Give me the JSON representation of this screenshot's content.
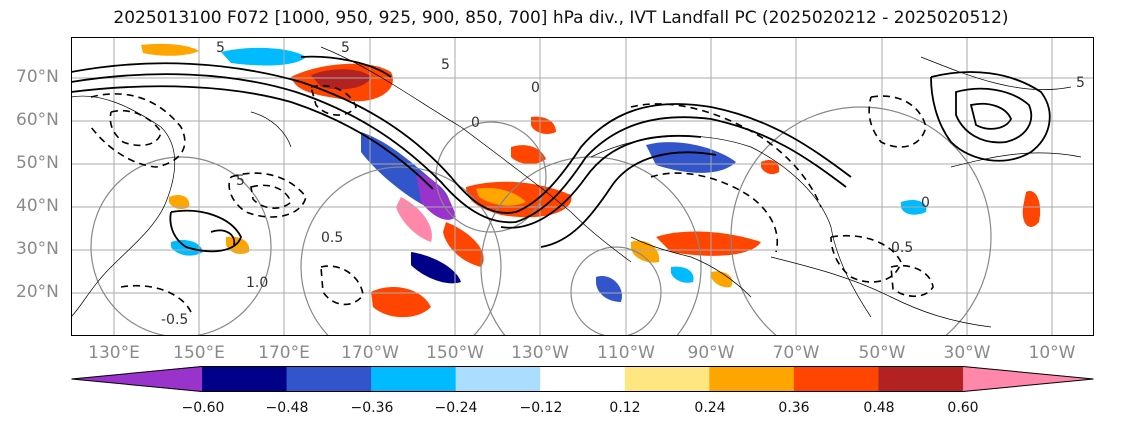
{
  "title": "2025013100 F072 [1000, 950, 925, 900, 850, 700] hPa div., IVT Landfall PC (2025020212 - 2025020512)",
  "lat_labels": [
    "70°N",
    "60°N",
    "50°N",
    "40°N",
    "30°N",
    "20°N"
  ],
  "lon_labels": [
    "130°E",
    "150°E",
    "170°E",
    "170°W",
    "150°W",
    "130°W",
    "110°W",
    "90°W",
    "70°W",
    "50°W",
    "30°W",
    "10°W"
  ],
  "colorbar": {
    "ticks": [
      "−0.60",
      "−0.48",
      "−0.36",
      "−0.24",
      "−0.12",
      "0.12",
      "0.24",
      "0.36",
      "0.48",
      "0.60"
    ],
    "colors": [
      "#9933cc",
      "#000088",
      "#3355cc",
      "#00bbff",
      "#aaddff",
      "#ffffff",
      "#ffe680",
      "#ffa500",
      "#ff4500",
      "#b22222",
      "#ff88aa"
    ]
  },
  "contour_labels": [
    "5",
    "5",
    "5",
    "0.5",
    "0.5",
    "1.0",
    "-0.5",
    "0",
    "0",
    "0",
    "5",
    "5"
  ],
  "colors": {
    "grid": "#aaaaaa",
    "contour": "#000000",
    "range_ring": "#888888"
  }
}
